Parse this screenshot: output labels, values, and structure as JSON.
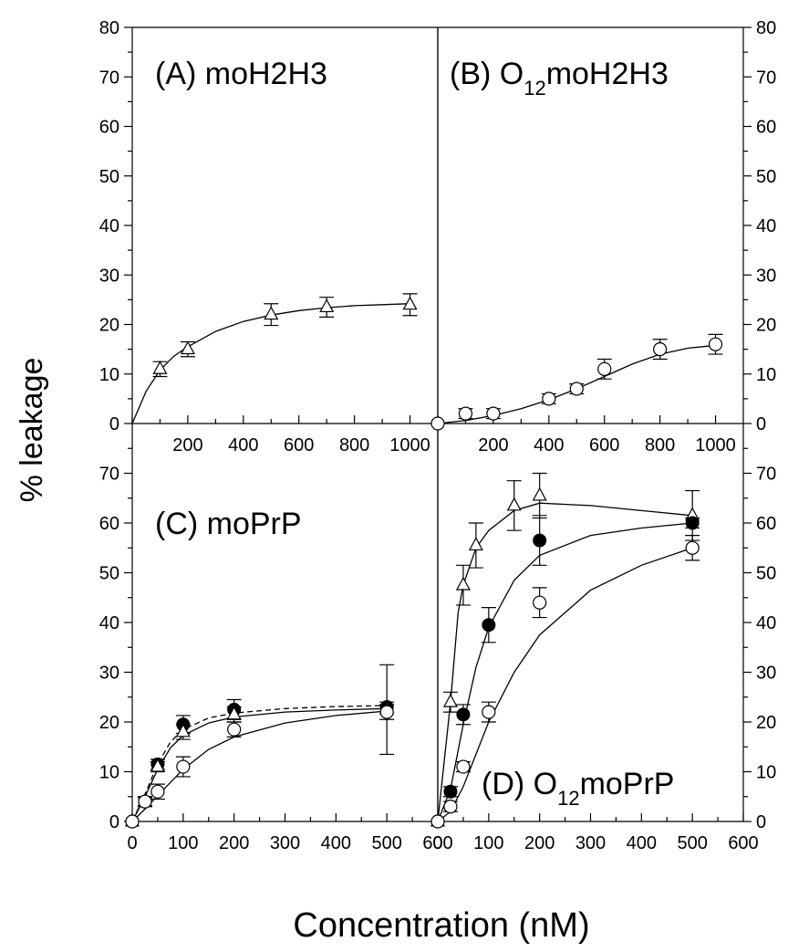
{
  "figure": {
    "ylabel": "% leakage",
    "xlabel": "Concentration (nM)"
  },
  "chart_data": [
    {
      "panel": "A",
      "type": "line",
      "title": "(A) moH2H3",
      "xlim": [
        0,
        1100
      ],
      "ylim": [
        0,
        80
      ],
      "xticks": [
        200,
        400,
        600,
        800,
        1000
      ],
      "yticks": [
        0,
        10,
        20,
        30,
        40,
        50,
        60,
        70,
        80
      ],
      "series": [
        {
          "marker": "triangle-open",
          "x": [
            100,
            200,
            500,
            700,
            1000
          ],
          "y": [
            11,
            15,
            22,
            23.5,
            24
          ],
          "err": [
            1.5,
            1.5,
            2.2,
            2,
            2.2
          ],
          "fit": [
            [
              0,
              0
            ],
            [
              50,
              6.5
            ],
            [
              100,
              10.8
            ],
            [
              150,
              13.6
            ],
            [
              200,
              15.5
            ],
            [
              300,
              18.6
            ],
            [
              400,
              20.6
            ],
            [
              500,
              21.9
            ],
            [
              600,
              22.8
            ],
            [
              700,
              23.4
            ],
            [
              800,
              23.8
            ],
            [
              900,
              24
            ],
            [
              1000,
              24.2
            ]
          ]
        }
      ]
    },
    {
      "panel": "B",
      "type": "line",
      "title_prefix": "(B) O",
      "title_sub": "12",
      "title_suffix": "moH2H3",
      "xlim": [
        0,
        1100
      ],
      "ylim": [
        0,
        80
      ],
      "xticks": [
        200,
        400,
        600,
        800,
        1000
      ],
      "yticks": [
        0,
        10,
        20,
        30,
        40,
        50,
        60,
        70,
        80
      ],
      "series": [
        {
          "marker": "circle-open",
          "x": [
            0,
            100,
            200,
            400,
            500,
            600,
            800,
            1000
          ],
          "y": [
            0,
            2,
            2,
            5,
            7,
            11,
            15,
            16
          ],
          "err": [
            0,
            1,
            1,
            1,
            1,
            2,
            2,
            2
          ],
          "fit": [
            [
              0,
              0
            ],
            [
              100,
              0.6
            ],
            [
              200,
              1.6
            ],
            [
              300,
              3
            ],
            [
              400,
              4.8
            ],
            [
              500,
              7
            ],
            [
              600,
              9.5
            ],
            [
              700,
              12
            ],
            [
              800,
              14
            ],
            [
              900,
              15.2
            ],
            [
              1000,
              15.8
            ]
          ]
        }
      ]
    },
    {
      "panel": "C",
      "type": "line",
      "title": "(C) moPrP",
      "xlim": [
        0,
        600
      ],
      "ylim": [
        0,
        80
      ],
      "xticks": [
        0,
        100,
        200,
        300,
        400,
        500,
        600
      ],
      "yticks": [
        0,
        10,
        20,
        30,
        40,
        50,
        60,
        70
      ],
      "series": [
        {
          "marker": "circle-filled",
          "x": [
            0,
            25,
            50,
            100,
            200,
            500
          ],
          "y": [
            0,
            4,
            11.5,
            19.5,
            22.5,
            23
          ],
          "err": [
            0,
            0.8,
            1,
            1.8,
            2,
            1
          ],
          "dashed": true,
          "fit": [
            [
              0,
              0
            ],
            [
              25,
              5.5
            ],
            [
              50,
              11.5
            ],
            [
              75,
              16
            ],
            [
              100,
              18.5
            ],
            [
              150,
              20.8
            ],
            [
              200,
              21.8
            ],
            [
              300,
              22.7
            ],
            [
              400,
              23.1
            ],
            [
              500,
              23.3
            ]
          ]
        },
        {
          "marker": "triangle-open",
          "x": [
            0,
            25,
            50,
            100,
            200,
            500
          ],
          "y": [
            0,
            4,
            11,
            18,
            21.5,
            22.5
          ],
          "err": [
            0,
            1,
            1,
            1.5,
            1.5,
            9
          ],
          "fit": [
            [
              0,
              0
            ],
            [
              25,
              5
            ],
            [
              50,
              10.5
            ],
            [
              75,
              14.8
            ],
            [
              100,
              17.3
            ],
            [
              150,
              19.8
            ],
            [
              200,
              21
            ],
            [
              300,
              22
            ],
            [
              400,
              22.4
            ],
            [
              500,
              22.7
            ]
          ]
        },
        {
          "marker": "circle-open",
          "x": [
            0,
            25,
            50,
            100,
            200,
            500
          ],
          "y": [
            0,
            4,
            6,
            11,
            18.5,
            22
          ],
          "err": [
            0,
            1,
            1.5,
            2,
            1.5,
            1.5
          ],
          "fit": [
            [
              0,
              0
            ],
            [
              25,
              2.5
            ],
            [
              50,
              5.2
            ],
            [
              100,
              10.5
            ],
            [
              150,
              14.5
            ],
            [
              200,
              17
            ],
            [
              300,
              19.8
            ],
            [
              400,
              21.3
            ],
            [
              500,
              22.2
            ]
          ]
        }
      ]
    },
    {
      "panel": "D",
      "type": "line",
      "title_prefix": "(D) O",
      "title_sub": "12",
      "title_suffix": "moPrP",
      "xlim": [
        0,
        600
      ],
      "ylim": [
        0,
        80
      ],
      "xticks": [
        0,
        100,
        200,
        300,
        400,
        500,
        600
      ],
      "yticks": [
        0,
        10,
        20,
        30,
        40,
        50,
        60,
        70
      ],
      "series": [
        {
          "marker": "triangle-open",
          "x": [
            0,
            25,
            50,
            75,
            150,
            200,
            500
          ],
          "y": [
            0,
            24,
            47.5,
            55.5,
            63.5,
            65.5,
            61.5
          ],
          "err": [
            0,
            2,
            4,
            4.5,
            5,
            4.5,
            5
          ],
          "fit": [
            [
              0,
              0
            ],
            [
              25,
              24
            ],
            [
              40,
              42
            ],
            [
              50,
              47.5
            ],
            [
              75,
              55
            ],
            [
              100,
              58.5
            ],
            [
              150,
              62.5
            ],
            [
              200,
              64
            ],
            [
              300,
              63.5
            ],
            [
              400,
              62.5
            ],
            [
              500,
              61.5
            ]
          ]
        },
        {
          "marker": "circle-filled",
          "x": [
            0,
            25,
            50,
            100,
            200,
            500
          ],
          "y": [
            0,
            6,
            21.5,
            39.5,
            56.5,
            60
          ],
          "err": [
            0,
            1,
            2,
            3.5,
            5,
            1
          ],
          "fit": [
            [
              0,
              0
            ],
            [
              25,
              6.5
            ],
            [
              50,
              19.5
            ],
            [
              75,
              31
            ],
            [
              100,
              39
            ],
            [
              150,
              48.5
            ],
            [
              200,
              53.5
            ],
            [
              300,
              57.5
            ],
            [
              400,
              59
            ],
            [
              500,
              60
            ]
          ]
        },
        {
          "marker": "circle-open",
          "x": [
            0,
            25,
            50,
            100,
            200,
            500
          ],
          "y": [
            0,
            3,
            11,
            22,
            44,
            55
          ],
          "err": [
            0,
            1,
            1,
            2,
            3,
            2.5
          ],
          "fit": [
            [
              0,
              0
            ],
            [
              25,
              2
            ],
            [
              50,
              7
            ],
            [
              75,
              13.5
            ],
            [
              100,
              20
            ],
            [
              150,
              30
            ],
            [
              200,
              37.5
            ],
            [
              300,
              46.5
            ],
            [
              400,
              51.5
            ],
            [
              500,
              55
            ]
          ]
        }
      ]
    }
  ]
}
